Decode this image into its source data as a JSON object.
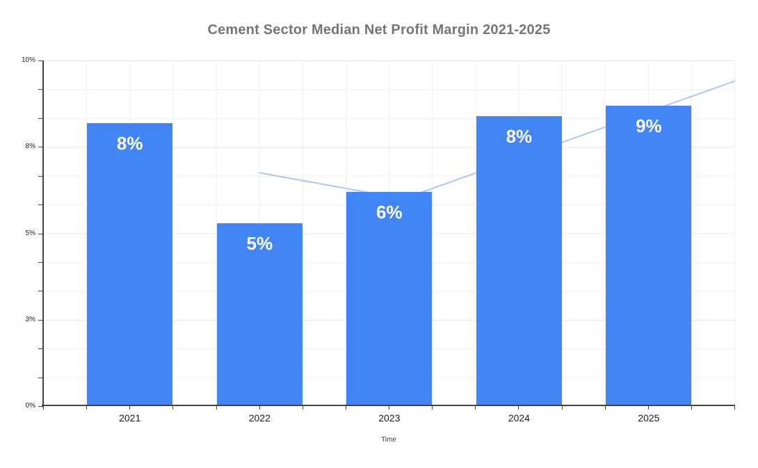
{
  "chart_data": {
    "type": "bar",
    "title": "Cement Sector Median Net Profit Margin 2021-2025",
    "xlabel": "Time",
    "ylabel": "",
    "categories": [
      "2021",
      "2022",
      "2023",
      "2024",
      "2025"
    ],
    "values": [
      8.2,
      5.3,
      6.2,
      8.4,
      8.7
    ],
    "bar_labels": [
      "8%",
      "5%",
      "6%",
      "8%",
      "9%"
    ],
    "y_axis": {
      "min": 0,
      "max": 10,
      "ticks": [
        {
          "label": "10%",
          "value": 10
        },
        {
          "label": "8%",
          "value": 7.5
        },
        {
          "label": "5%",
          "value": 5
        },
        {
          "label": "3%",
          "value": 2.5
        },
        {
          "label": "0%",
          "value": 0
        }
      ],
      "minor_divisions_per_major": 3
    },
    "trend_line": {
      "name": "trend-line",
      "points": [
        {
          "x_frac": 0.313,
          "value": 6.75
        },
        {
          "x_frac": 0.521,
          "value": 6.0
        },
        {
          "x_frac": 1.0,
          "value": 9.4
        }
      ]
    },
    "layout": {
      "grid": "on",
      "legend": "none",
      "x_minor_gridlines": 16,
      "y_minor_gridlines": 12
    },
    "colors": {
      "bar": "#4285f4",
      "trend": "#a4c2f4",
      "title": "#757575",
      "bar_label": "#ffffff",
      "axis": "#424242",
      "grid_minor": "#ededed",
      "grid_major": "#e3e3e3"
    }
  }
}
